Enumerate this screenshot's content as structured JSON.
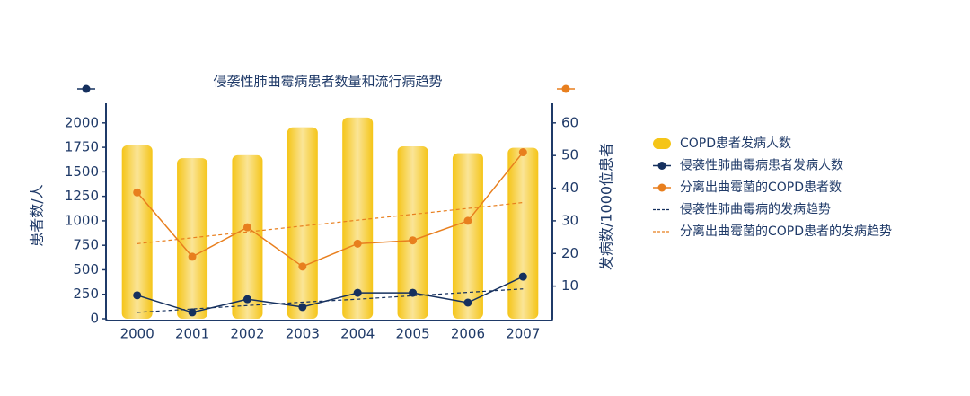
{
  "chart_data": {
    "type": "bar-line",
    "title": "侵袭性肺曲霉病患者数量和流行病趋势",
    "y_label": "患者数/人",
    "y2_label": "发病数/1000位患者",
    "categories": [
      "2000",
      "2001",
      "2002",
      "2003",
      "2004",
      "2005",
      "2006",
      "2007"
    ],
    "ylim": [
      0,
      2200
    ],
    "yticks": [
      0,
      250,
      500,
      750,
      1000,
      1250,
      1500,
      1750,
      2000
    ],
    "y2lim": [
      0,
      66
    ],
    "y2ticks": [
      10,
      20,
      30,
      40,
      50,
      60
    ],
    "series": [
      {
        "name": "COPD患者发病人数",
        "type": "bar",
        "color": "#f5c518",
        "values": [
          1770,
          1640,
          1670,
          1955,
          2055,
          1760,
          1690,
          1745
        ]
      },
      {
        "name": "侵袭性肺曲霉病患者发病人数",
        "type": "line",
        "color": "#15305e",
        "values": [
          240,
          65,
          200,
          120,
          265,
          265,
          165,
          430
        ]
      },
      {
        "name": "分离出曲霉菌的COPD患者数",
        "type": "line",
        "axis": "y2",
        "color": "#e87f1e",
        "values": [
          38.7,
          19,
          28,
          16,
          23,
          24,
          30,
          51
        ]
      },
      {
        "name": "侵袭性肺曲霉病的发病趋势",
        "type": "trend",
        "color": "#15305e",
        "values": [
          65,
          100,
          135,
          170,
          200,
          235,
          270,
          305
        ]
      },
      {
        "name": "分离出曲霉菌的COPD患者的发病趋势",
        "type": "trend",
        "axis": "y2",
        "color": "#e87f1e",
        "values": [
          23,
          24.8,
          26.6,
          28.4,
          30.2,
          32,
          33.8,
          35.6
        ]
      }
    ]
  }
}
